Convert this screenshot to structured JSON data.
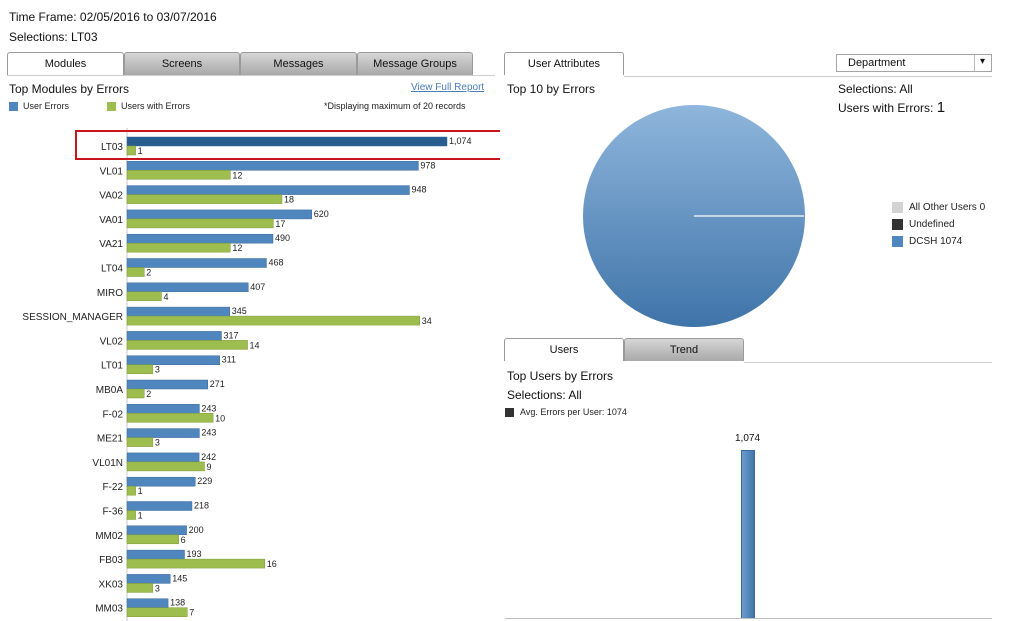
{
  "header": {
    "timeframe": "Time Frame: 02/05/2016 to 03/07/2016",
    "selections": "Selections: LT03"
  },
  "left_tabs": [
    {
      "label": "Modules",
      "active": true
    },
    {
      "label": "Screens",
      "active": false
    },
    {
      "label": "Messages",
      "active": false
    },
    {
      "label": "Message Groups",
      "active": false
    }
  ],
  "modules_panel": {
    "title": "Top Modules by Errors",
    "legend": {
      "series1": "User Errors",
      "series2": "Users with Errors"
    },
    "view_full_report": "View Full Report",
    "note": "*Displaying maximum of 20 records",
    "highlighted": "LT03"
  },
  "chart_data": [
    {
      "type": "bar",
      "orientation": "horizontal",
      "title": "Top Modules by Errors",
      "categories": [
        "LT03",
        "VL01",
        "VA02",
        "VA01",
        "VA21",
        "LT04",
        "MIRO",
        "SESSION_MANAGER",
        "VL02",
        "LT01",
        "MB0A",
        "F-02",
        "ME21",
        "VL01N",
        "F-22",
        "F-36",
        "MM02",
        "FB03",
        "XK03",
        "MM03"
      ],
      "series": [
        {
          "name": "User Errors",
          "color": "#4f86bd",
          "values": [
            1074,
            978,
            948,
            620,
            490,
            468,
            407,
            345,
            317,
            311,
            271,
            243,
            243,
            242,
            229,
            218,
            200,
            193,
            145,
            138
          ]
        },
        {
          "name": "Users with Errors",
          "color": "#9dbd4e",
          "values": [
            1,
            12,
            18,
            17,
            12,
            2,
            4,
            34,
            14,
            3,
            2,
            10,
            3,
            9,
            1,
            1,
            6,
            16,
            3,
            7
          ]
        }
      ],
      "data_labels": {
        "User Errors": [
          "1,074",
          "978",
          "948",
          "620",
          "490",
          "468",
          "407",
          "345",
          "317",
          "311",
          "271",
          "243",
          "243",
          "242",
          "229",
          "218",
          "200",
          "193",
          "145",
          "138"
        ],
        "Users with Errors": [
          "1",
          "12",
          "18",
          "17",
          "12",
          "2",
          "4",
          "34",
          "14",
          "3",
          "2",
          "10",
          "3",
          "9",
          "1",
          "1",
          "6",
          "16",
          "3",
          "7"
        ]
      }
    },
    {
      "type": "pie",
      "title": "Top 10 by Errors",
      "labels": [
        "All Other Users 0",
        "Undefined",
        "DCSH 1074"
      ],
      "values": [
        0,
        0,
        1074
      ],
      "colors": [
        "#d3d3d3",
        "#333333",
        "#4f86bd"
      ]
    },
    {
      "type": "bar",
      "title": "Top Users by Errors",
      "series": [
        {
          "name": "Avg. Errors per User: 1074",
          "values": [
            1074
          ]
        }
      ],
      "data_labels": [
        "1,074"
      ],
      "color": "#4f86bd"
    }
  ],
  "right_tab": {
    "label": "User Attributes"
  },
  "department_select": {
    "value": "Department",
    "arrow": "▾"
  },
  "pie_panel": {
    "title": "Top 10 by Errors",
    "selections": "Selections: All",
    "users_label": "Users with Errors:",
    "users_value": "1",
    "legend": [
      "All Other Users 0",
      "Undefined",
      "DCSH 1074"
    ]
  },
  "bottom_tabs": [
    {
      "label": "Users",
      "active": true
    },
    {
      "label": "Trend",
      "active": false
    }
  ],
  "users_panel": {
    "title": "Top Users by Errors",
    "selections": "Selections: All",
    "avg_label": "Avg. Errors per User: 1074",
    "bar_label": "1,074"
  },
  "colors": {
    "blue": "#4f86bd",
    "green": "#9dbd4e",
    "highlight": "#c8141b",
    "dark": "#333333"
  }
}
